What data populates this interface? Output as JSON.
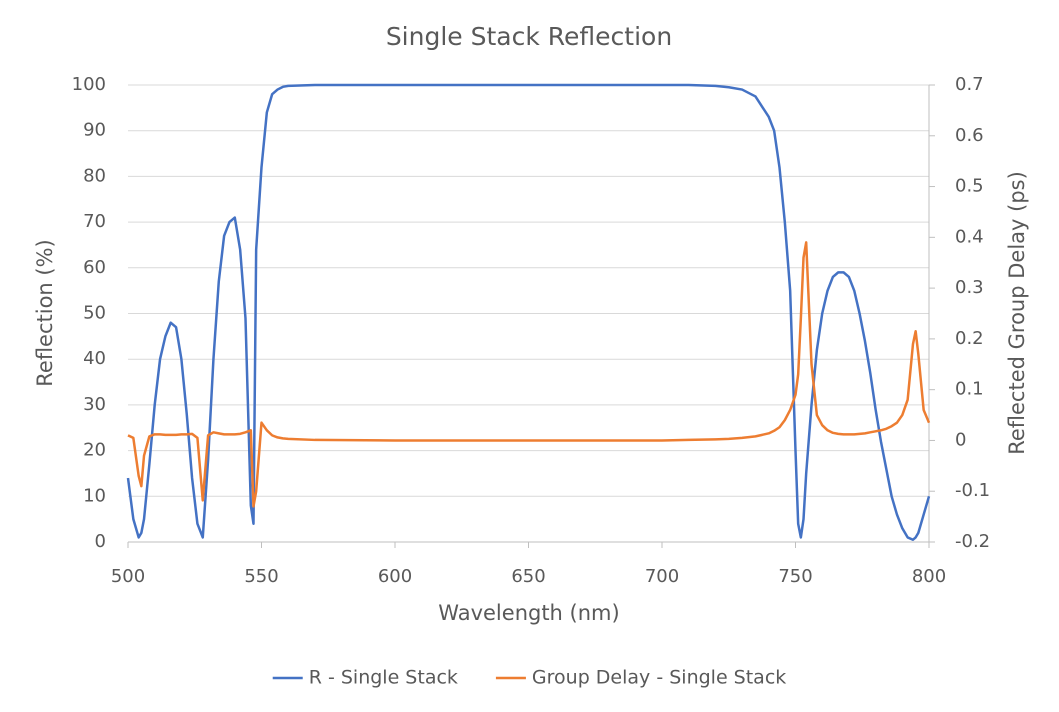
{
  "chart_data": {
    "type": "line",
    "title": "Single Stack Reflection",
    "x_label": "Wavelength (nm)",
    "y_label": "Reflection (%)",
    "y2_label": "Reflected Group Delay (ps)",
    "x": [
      500,
      502,
      504,
      505,
      506,
      508,
      510,
      512,
      514,
      516,
      518,
      520,
      522,
      524,
      526,
      528,
      530,
      532,
      534,
      536,
      538,
      540,
      542,
      544,
      546,
      547,
      548,
      550,
      552,
      554,
      556,
      558,
      560,
      570,
      600,
      650,
      700,
      710,
      720,
      725,
      730,
      735,
      740,
      742,
      744,
      746,
      748,
      750,
      751,
      752,
      753,
      754,
      756,
      758,
      760,
      762,
      764,
      766,
      768,
      770,
      772,
      774,
      776,
      778,
      780,
      782,
      784,
      786,
      788,
      790,
      792,
      794,
      795,
      796,
      798,
      800
    ],
    "series": [
      {
        "name": "R - Single Stack",
        "color": "#4472c4",
        "axis": "y",
        "values": [
          14,
          5,
          1,
          2,
          5,
          17,
          30,
          40,
          45,
          48,
          47,
          40,
          28,
          14,
          4,
          1,
          18,
          40,
          57,
          67,
          70,
          71,
          64,
          49,
          8,
          4,
          64,
          82,
          94,
          98,
          99,
          99.6,
          99.8,
          100,
          100,
          100,
          100,
          100,
          99.8,
          99.5,
          99,
          97.5,
          93,
          90,
          82,
          70,
          55,
          20,
          4,
          1,
          5,
          15,
          30,
          42,
          50,
          55,
          58,
          59,
          59,
          58,
          55,
          50,
          44,
          37,
          29,
          22,
          16,
          10,
          6,
          3,
          1,
          0.5,
          1,
          2,
          6,
          10
        ]
      },
      {
        "name": "Group Delay - Single Stack",
        "color": "#ed7d31",
        "axis": "y2",
        "values": [
          0.01,
          0.005,
          -0.07,
          -0.09,
          -0.03,
          0.008,
          0.012,
          0.012,
          0.011,
          0.011,
          0.011,
          0.012,
          0.012,
          0.013,
          0.005,
          -0.118,
          0.01,
          0.016,
          0.014,
          0.012,
          0.012,
          0.012,
          0.013,
          0.016,
          0.02,
          -0.13,
          -0.1,
          0.035,
          0.02,
          0.01,
          0.006,
          0.004,
          0.003,
          0.001,
          0,
          0,
          0,
          0.001,
          0.002,
          0.003,
          0.005,
          0.008,
          0.014,
          0.019,
          0.026,
          0.04,
          0.06,
          0.09,
          0.13,
          0.24,
          0.36,
          0.39,
          0.15,
          0.05,
          0.03,
          0.02,
          0.015,
          0.013,
          0.012,
          0.012,
          0.012,
          0.013,
          0.014,
          0.016,
          0.018,
          0.02,
          0.023,
          0.028,
          0.035,
          0.05,
          0.08,
          0.19,
          0.215,
          0.17,
          0.06,
          0.035
        ]
      }
    ],
    "xlim": [
      500,
      800
    ],
    "xticks": [
      500,
      550,
      600,
      650,
      700,
      750,
      800
    ],
    "ylim": [
      0,
      100
    ],
    "yticks": [
      0,
      10,
      20,
      30,
      40,
      50,
      60,
      70,
      80,
      90,
      100
    ],
    "y2lim": [
      -0.2,
      0.7
    ],
    "y2ticks": [
      -0.2,
      -0.1,
      0,
      0.1,
      0.2,
      0.3,
      0.4,
      0.5,
      0.6,
      0.7
    ],
    "grid": true,
    "legend": "bottom"
  }
}
